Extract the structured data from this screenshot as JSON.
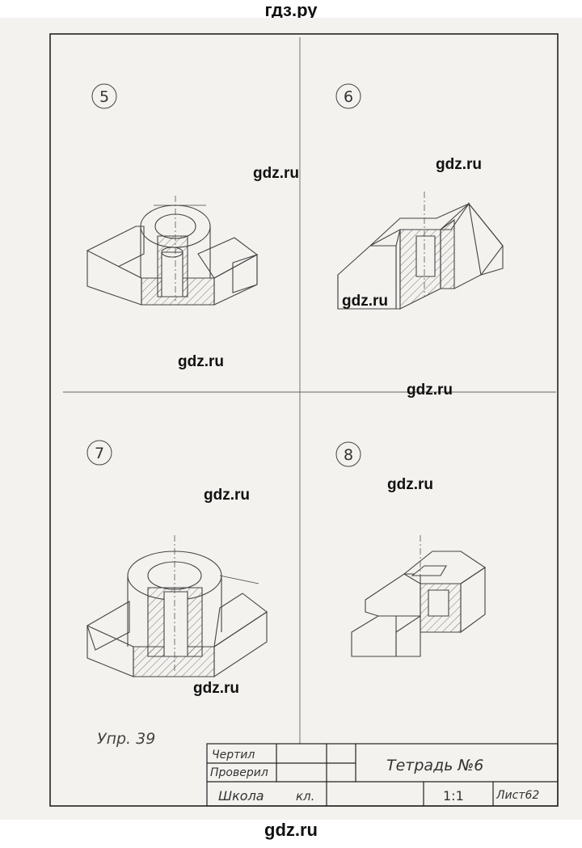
{
  "site_header": "гдз.ру",
  "site_footer": "gdz.ru",
  "watermarks": [
    "gdz.ru",
    "gdz.ru",
    "gdz.ru",
    "gdz.ru",
    "gdz.ru",
    "gdz.ru",
    "gdz.ru",
    "gdz.ru"
  ],
  "exercise_label": "Упр. 39",
  "figures": [
    {
      "number": "5"
    },
    {
      "number": "6"
    },
    {
      "number": "7"
    },
    {
      "number": "8"
    }
  ],
  "title_block": {
    "drawn_label": "Чертил",
    "checked_label": "Проверил",
    "school_label": "Школа",
    "class_label": "кл.",
    "title": "Тетрадь №6",
    "scale": "1:1",
    "sheet": "Лист62"
  },
  "colors": {
    "line": "#4a4a4a",
    "paper": "#f3f2ef",
    "frame": "#222222"
  }
}
